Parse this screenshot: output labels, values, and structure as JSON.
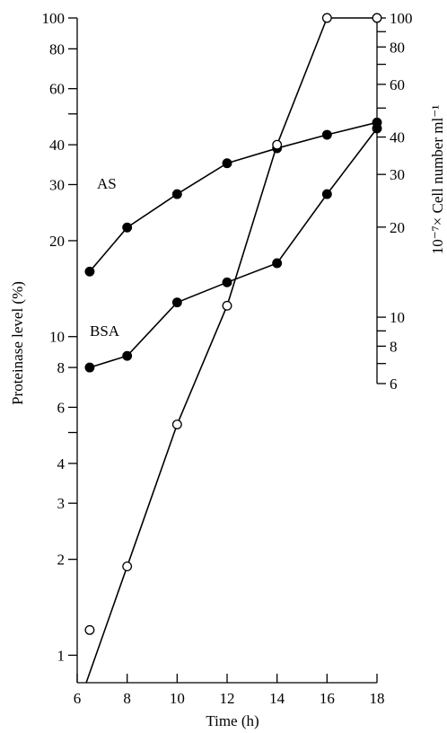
{
  "chart_data": {
    "type": "line",
    "xlabel": "Time (h)",
    "ylabel_left": "Proteinase level (%)",
    "ylabel_right": "10⁻⁷× Cell number ml⁻¹",
    "x_ticks": [
      6,
      8,
      10,
      12,
      14,
      16,
      18
    ],
    "xlim": [
      6,
      18
    ],
    "left_y": {
      "scale": "log",
      "lim": [
        0.82,
        100
      ],
      "ticks": [
        1,
        2,
        3,
        4,
        6,
        8,
        10,
        20,
        30,
        40,
        60,
        80,
        100
      ],
      "tick_labels": [
        "1",
        "2",
        "3",
        "4",
        "6",
        "8",
        "10",
        "20",
        "30",
        "40",
        "60",
        "80",
        "100"
      ],
      "minor_ticks": [
        5,
        50
      ]
    },
    "right_y": {
      "scale": "log",
      "lim": [
        6,
        100
      ],
      "ticks": [
        6,
        8,
        10,
        20,
        30,
        40,
        60,
        80,
        100
      ],
      "tick_labels": [
        "6",
        "8",
        "10",
        "20",
        "30",
        "40",
        "60",
        "80",
        "100"
      ],
      "minor_ticks": [
        7,
        9,
        50,
        70,
        90
      ]
    },
    "series": [
      {
        "name": "AS",
        "marker": "filled-circle",
        "axis": "left",
        "x": [
          6.5,
          8,
          10,
          12,
          14,
          16,
          18
        ],
        "y": [
          16,
          22,
          28,
          35,
          39,
          43,
          47
        ]
      },
      {
        "name": "BSA",
        "marker": "filled-circle",
        "axis": "left",
        "x": [
          6.5,
          8,
          10,
          12,
          14,
          16,
          18
        ],
        "y": [
          8,
          8.7,
          12.8,
          14.8,
          17,
          28,
          45
        ]
      },
      {
        "name": "",
        "marker": "open-circle",
        "axis": "right",
        "x": [
          6.5,
          8,
          10,
          12,
          14,
          16,
          18
        ],
        "y": [
          1.2,
          1.9,
          5.3,
          12.5,
          40,
          100,
          100
        ],
        "y_on_axis": "left"
      }
    ]
  }
}
